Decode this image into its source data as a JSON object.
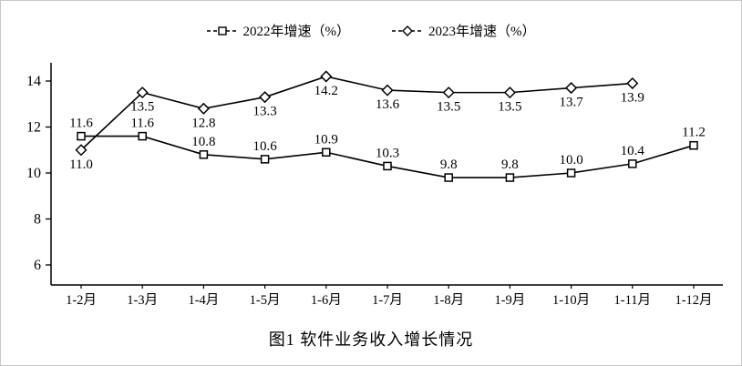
{
  "legend": {
    "items": [
      {
        "label": "2022年增速（%）",
        "marker": "square"
      },
      {
        "label": "2023年增速（%）",
        "marker": "diamond"
      }
    ]
  },
  "caption": "图1  软件业务收入增长情况",
  "chart_data": {
    "type": "line",
    "title": "图1  软件业务收入增长情况",
    "categories": [
      "1-2月",
      "1-3月",
      "1-4月",
      "1-5月",
      "1-6月",
      "1-7月",
      "1-8月",
      "1-9月",
      "1-10月",
      "1-11月",
      "1-12月"
    ],
    "series": [
      {
        "name": "2022年增速（%）",
        "marker": "square",
        "values": [
          11.6,
          11.6,
          10.8,
          10.6,
          10.9,
          10.3,
          9.8,
          9.8,
          10.0,
          10.4,
          11.2
        ]
      },
      {
        "name": "2023年增速（%）",
        "marker": "diamond",
        "values": [
          11.0,
          13.5,
          12.8,
          13.3,
          14.2,
          13.6,
          13.5,
          13.5,
          13.7,
          13.9
        ]
      }
    ],
    "y_ticks": [
      6,
      8,
      10,
      12,
      14
    ],
    "ylim": [
      5.1,
      14.9
    ],
    "xlabel": "",
    "ylabel": "",
    "grid": false,
    "legend_position": "top",
    "line_color": "#000000",
    "data_labels": true
  }
}
